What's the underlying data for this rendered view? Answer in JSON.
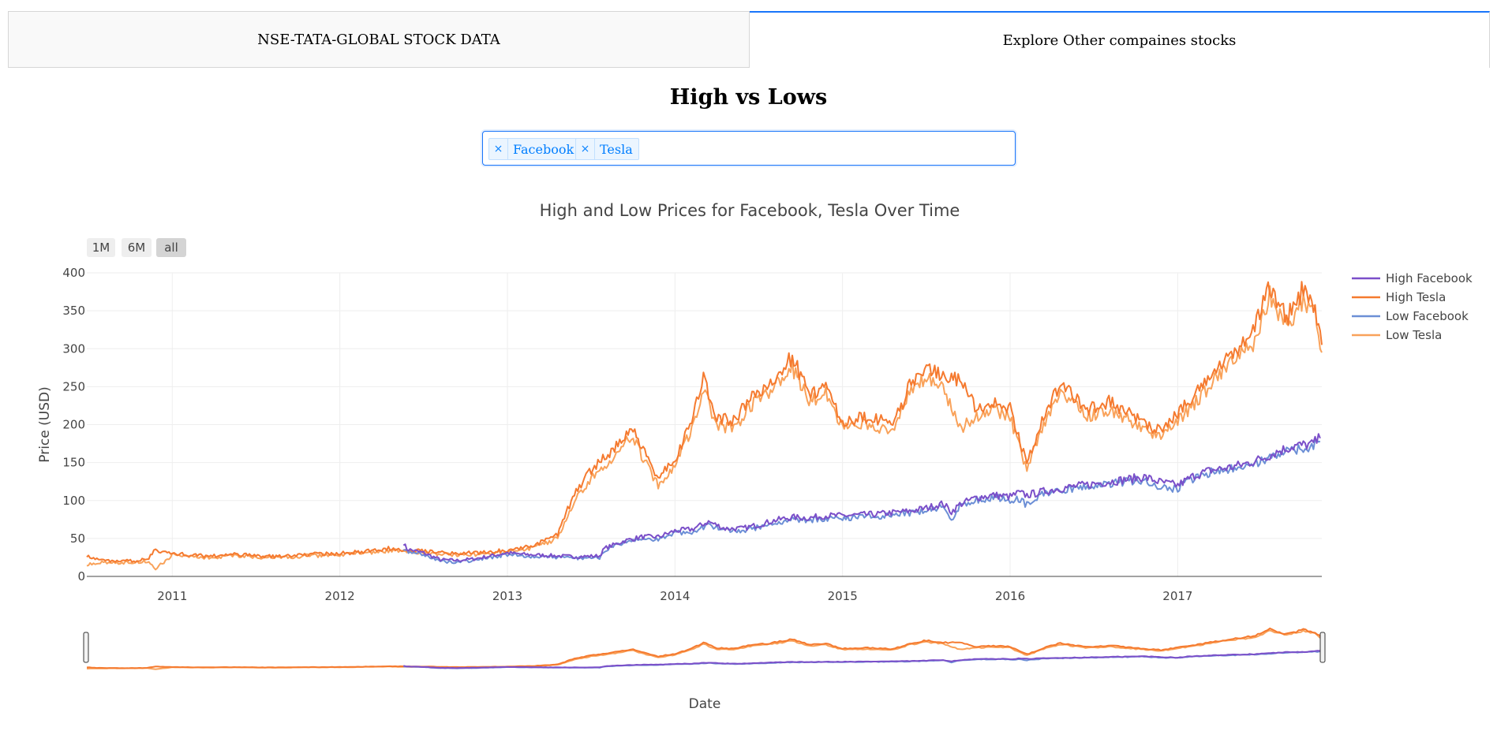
{
  "tabs": [
    {
      "label": "NSE-TATA-GLOBAL STOCK DATA",
      "active": false
    },
    {
      "label": "Explore Other compaines stocks",
      "active": true
    }
  ],
  "page_title": "High vs Lows",
  "dropdown": {
    "selected": [
      "Facebook",
      "Tesla"
    ],
    "remove_glyph": "×"
  },
  "colors": {
    "high_facebook": "#7B4FC9",
    "high_tesla": "#F57A2F",
    "low_facebook": "#6C8FD6",
    "low_tesla": "#F9A25A",
    "accent": "#1975FA"
  },
  "chart_data": {
    "type": "line",
    "title": "High and Low Prices for Facebook, Tesla Over Time",
    "xlabel": "Date",
    "ylabel": "Price (USD)",
    "xlim": [
      2010.49,
      2017.86
    ],
    "ylim": [
      0,
      400
    ],
    "x_ticks": [
      2011,
      2012,
      2013,
      2014,
      2015,
      2016,
      2017
    ],
    "x_tick_labels": [
      "2011",
      "2012",
      "2013",
      "2014",
      "2015",
      "2016",
      "2017"
    ],
    "y_ticks": [
      0,
      50,
      100,
      150,
      200,
      250,
      300,
      350,
      400
    ],
    "y_tick_labels": [
      "0",
      "50",
      "100",
      "150",
      "200",
      "250",
      "300",
      "350",
      "400"
    ],
    "range_buttons": [
      "1M",
      "6M",
      "all"
    ],
    "active_range": "all",
    "grid": true,
    "legend_position": "top-right",
    "series": [
      {
        "name": "High Facebook",
        "color": "#7B4FC9",
        "x": [
          2012.38,
          2012.4,
          2012.5,
          2012.6,
          2012.7,
          2012.8,
          2012.9,
          2013.0,
          2013.1,
          2013.2,
          2013.3,
          2013.4,
          2013.55,
          2013.58,
          2013.7,
          2013.8,
          2013.9,
          2014.0,
          2014.1,
          2014.2,
          2014.3,
          2014.4,
          2014.5,
          2014.6,
          2014.7,
          2014.8,
          2014.9,
          2015.0,
          2015.2,
          2015.4,
          2015.5,
          2015.6,
          2015.65,
          2015.7,
          2015.8,
          2015.9,
          2016.0,
          2016.05,
          2016.1,
          2016.2,
          2016.3,
          2016.4,
          2016.5,
          2016.6,
          2016.7,
          2016.8,
          2016.9,
          2017.0,
          2017.1,
          2017.2,
          2017.3,
          2017.4,
          2017.5,
          2017.6,
          2017.7,
          2017.8,
          2017.85
        ],
        "values": [
          44,
          36,
          31,
          22,
          21,
          23,
          27,
          31,
          29,
          28,
          27,
          26,
          27,
          37,
          47,
          52,
          52,
          60,
          62,
          72,
          63,
          63,
          68,
          74,
          78,
          77,
          80,
          80,
          82,
          86,
          90,
          96,
          85,
          95,
          104,
          107,
          105,
          110,
          107,
          112,
          116,
          119,
          122,
          125,
          128,
          131,
          124,
          120,
          133,
          140,
          143,
          148,
          155,
          165,
          172,
          174,
          182
        ]
      },
      {
        "name": "High Tesla",
        "color": "#F57A2F",
        "x": [
          2010.49,
          2010.55,
          2010.7,
          2010.85,
          2010.9,
          2011.0,
          2011.2,
          2011.4,
          2011.6,
          2011.8,
          2012.0,
          2012.2,
          2012.3,
          2012.5,
          2012.7,
          2012.9,
          2013.0,
          2013.15,
          2013.3,
          2013.4,
          2013.5,
          2013.6,
          2013.7,
          2013.75,
          2013.8,
          2013.9,
          2014.0,
          2014.1,
          2014.17,
          2014.25,
          2014.35,
          2014.45,
          2014.55,
          2014.7,
          2014.8,
          2014.9,
          2015.0,
          2015.15,
          2015.3,
          2015.4,
          2015.5,
          2015.6,
          2015.7,
          2015.8,
          2015.9,
          2016.0,
          2016.1,
          2016.2,
          2016.3,
          2016.45,
          2016.6,
          2016.75,
          2016.9,
          2017.0,
          2017.15,
          2017.3,
          2017.45,
          2017.55,
          2017.65,
          2017.75,
          2017.82,
          2017.86
        ],
        "values": [
          28,
          22,
          20,
          22,
          35,
          30,
          27,
          29,
          26,
          29,
          30,
          34,
          37,
          34,
          30,
          32,
          35,
          40,
          55,
          110,
          140,
          160,
          185,
          195,
          170,
          130,
          155,
          205,
          260,
          210,
          205,
          235,
          250,
          290,
          240,
          250,
          205,
          210,
          200,
          250,
          280,
          260,
          260,
          220,
          230,
          220,
          150,
          210,
          255,
          220,
          230,
          210,
          190,
          215,
          250,
          290,
          320,
          385,
          340,
          380,
          355,
          305
        ]
      },
      {
        "name": "Low Facebook",
        "color": "#6C8FD6",
        "x": [
          2012.38,
          2012.4,
          2012.5,
          2012.6,
          2012.7,
          2012.8,
          2012.9,
          2013.0,
          2013.1,
          2013.2,
          2013.3,
          2013.4,
          2013.55,
          2013.58,
          2013.7,
          2013.8,
          2013.9,
          2014.0,
          2014.1,
          2014.2,
          2014.3,
          2014.4,
          2014.5,
          2014.6,
          2014.7,
          2014.8,
          2014.9,
          2015.0,
          2015.2,
          2015.4,
          2015.5,
          2015.6,
          2015.65,
          2015.7,
          2015.8,
          2015.9,
          2016.0,
          2016.05,
          2016.1,
          2016.2,
          2016.3,
          2016.4,
          2016.5,
          2016.6,
          2016.7,
          2016.8,
          2016.9,
          2017.0,
          2017.1,
          2017.2,
          2017.3,
          2017.4,
          2017.5,
          2017.6,
          2017.7,
          2017.8,
          2017.85
        ],
        "values": [
          38,
          33,
          29,
          20,
          19,
          21,
          25,
          29,
          27,
          26,
          25,
          24,
          25,
          35,
          44,
          49,
          49,
          57,
          59,
          68,
          60,
          60,
          65,
          71,
          75,
          74,
          77,
          77,
          79,
          83,
          87,
          93,
          75,
          92,
          101,
          104,
          101,
          103,
          94,
          109,
          113,
          116,
          119,
          122,
          125,
          128,
          118,
          116,
          130,
          137,
          140,
          145,
          151,
          162,
          168,
          171,
          178
        ]
      },
      {
        "name": "Low Tesla",
        "color": "#F9A25A",
        "x": [
          2010.49,
          2010.55,
          2010.7,
          2010.85,
          2010.9,
          2011.0,
          2011.2,
          2011.4,
          2011.6,
          2011.8,
          2012.0,
          2012.2,
          2012.3,
          2012.5,
          2012.7,
          2012.9,
          2013.0,
          2013.15,
          2013.3,
          2013.4,
          2013.5,
          2013.6,
          2013.7,
          2013.75,
          2013.8,
          2013.9,
          2014.0,
          2014.1,
          2014.17,
          2014.25,
          2014.35,
          2014.45,
          2014.55,
          2014.7,
          2014.8,
          2014.9,
          2015.0,
          2015.15,
          2015.3,
          2015.4,
          2015.5,
          2015.6,
          2015.7,
          2015.8,
          2015.9,
          2016.0,
          2016.1,
          2016.2,
          2016.3,
          2016.45,
          2016.6,
          2016.75,
          2016.9,
          2017.0,
          2017.15,
          2017.3,
          2017.45,
          2017.55,
          2017.65,
          2017.75,
          2017.82,
          2017.86
        ],
        "values": [
          16,
          18,
          18,
          20,
          10,
          28,
          25,
          27,
          24,
          27,
          28,
          32,
          34,
          31,
          28,
          30,
          33,
          37,
          50,
          100,
          130,
          150,
          175,
          185,
          160,
          120,
          145,
          195,
          245,
          200,
          195,
          225,
          240,
          275,
          230,
          240,
          195,
          200,
          190,
          240,
          265,
          250,
          195,
          210,
          220,
          210,
          140,
          200,
          245,
          210,
          220,
          200,
          182,
          205,
          240,
          280,
          305,
          370,
          330,
          365,
          345,
          295
        ]
      }
    ]
  }
}
